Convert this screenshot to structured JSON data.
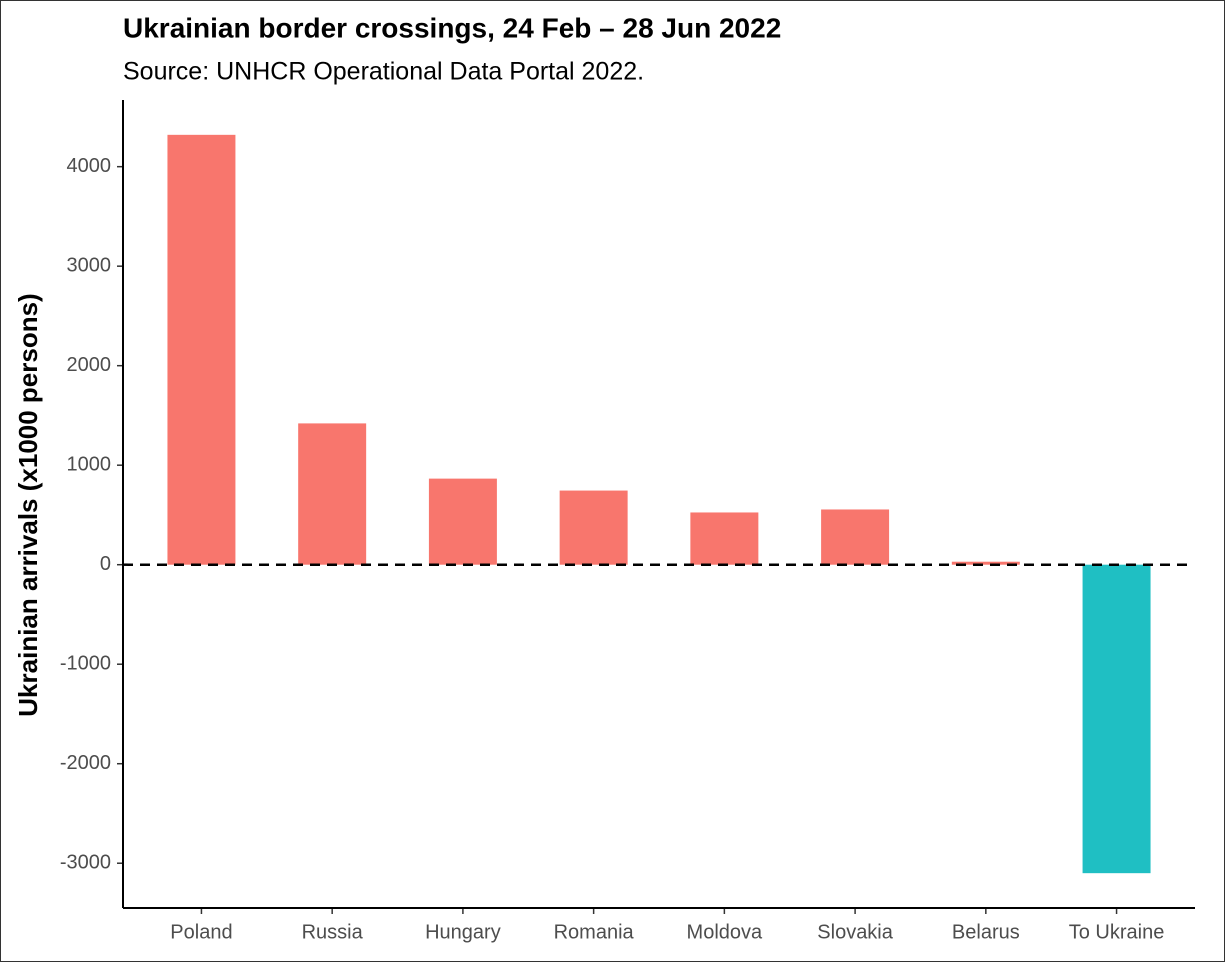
{
  "chart_data": {
    "type": "bar",
    "title": "Ukrainian border crossings, 24 Feb – 28 Jun 2022",
    "subtitle": "Source: UNHCR Operational Data Portal 2022.",
    "y_label": "Ukrainian arrivals (x1000 persons)",
    "categories": [
      "Poland",
      "Russia",
      "Hungary",
      "Romania",
      "Moldova",
      "Slovakia",
      "Belarus",
      "To Ukraine"
    ],
    "values": [
      4320,
      1420,
      865,
      745,
      525,
      555,
      30,
      -3100
    ],
    "colors": [
      "#f8766d",
      "#f8766d",
      "#f8766d",
      "#f8766d",
      "#f8766d",
      "#f8766d",
      "#f8766d",
      "#1fbfc3"
    ],
    "ylim": [
      -3450,
      4670
    ],
    "yticks": [
      -3000,
      -2000,
      -1000,
      0,
      1000,
      2000,
      3000,
      4000
    ],
    "reference_line": 0,
    "grid": false
  }
}
